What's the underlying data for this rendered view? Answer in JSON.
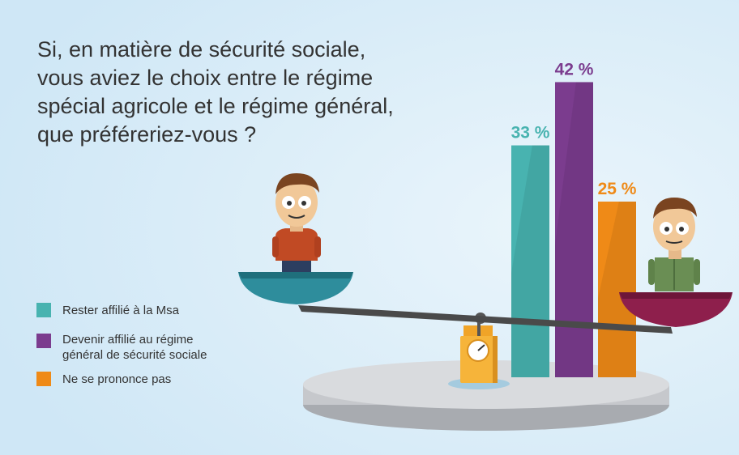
{
  "question": {
    "lines": [
      "Si, en matière de sécurité sociale,",
      "vous aviez le choix entre le régime",
      "spécial agricole et le régime général,",
      "que préféreriez-vous ?"
    ]
  },
  "colors": {
    "background_top": "#ffffff",
    "background_bottom": "#cfe7f6",
    "text": "#333333",
    "msa": "#48b3b0",
    "general": "#7b3c8e",
    "no_opinion": "#ef8a17",
    "pan_left": "#2e8d9c",
    "pan_right": "#8e1f4c",
    "platform": "#c6c8cc"
  },
  "chart_data": {
    "type": "bar",
    "categories": [
      "Rester affilié à la Msa",
      "Devenir affilié au régime général de sécurité sociale",
      "Ne se prononce pas"
    ],
    "values": [
      33,
      42,
      25
    ],
    "value_labels": [
      "33 %",
      "42 %",
      "25 %"
    ],
    "ylim": [
      0,
      50
    ],
    "grid": false,
    "legend_position": "bottom-left",
    "legend": [
      {
        "lines": [
          "Rester affilié à la Msa"
        ],
        "color": "#48b3b0"
      },
      {
        "lines": [
          "Devenir affilié au régime",
          "général de sécurité sociale"
        ],
        "color": "#7b3c8e"
      },
      {
        "lines": [
          "Ne se prononce pas"
        ],
        "color": "#ef8a17"
      }
    ]
  }
}
